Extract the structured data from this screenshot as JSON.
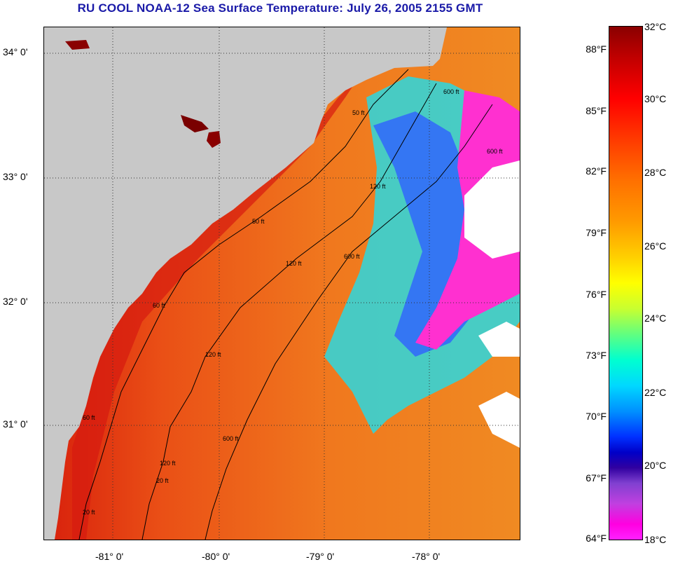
{
  "title": "RU COOL  NOAA-12  Sea Surface Temperature:  July 26, 2005 2155 GMT",
  "map": {
    "latitude_labels": [
      "34° 0'",
      "33° 0'",
      "32° 0'",
      "31° 0'"
    ],
    "longitude_labels": [
      "-81° 0'",
      "-80° 0'",
      "-79° 0'",
      "-78° 0'"
    ],
    "contour_labels": [
      "50 ft",
      "50 ft",
      "120 ft",
      "120 ft",
      "120 ft",
      "120 ft",
      "600 ft",
      "600 ft",
      "600 ft",
      "60 ft",
      "60 ft",
      "20 ft",
      "20 ft",
      "600 ft"
    ],
    "colors": {
      "land": "#c8c8c8",
      "no_data": "#ffffff",
      "warm": "#e6641e",
      "hot": "#d22010",
      "cool": "#28e0e8",
      "cold": "#ff30d0"
    }
  },
  "colorbar": {
    "fahrenheit": [
      "88°F",
      "85°F",
      "82°F",
      "79°F",
      "76°F",
      "73°F",
      "70°F",
      "67°F",
      "64°F"
    ],
    "celsius": [
      "32°C",
      "30°C",
      "28°C",
      "26°C",
      "24°C",
      "22°C",
      "20°C",
      "18°C"
    ]
  }
}
